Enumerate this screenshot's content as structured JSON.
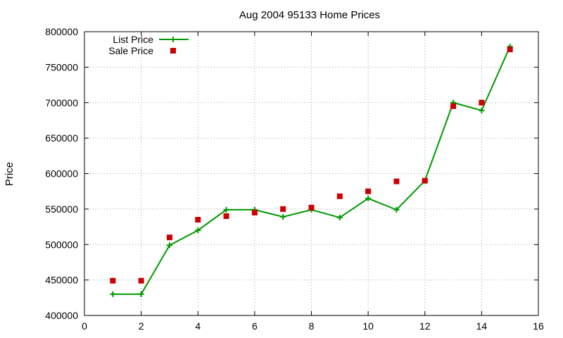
{
  "chart_data": {
    "type": "line",
    "title": "Aug 2004 95133 Home Prices",
    "ylabel": "Price",
    "xlim": [
      0,
      16
    ],
    "ylim": [
      400000,
      800000
    ],
    "x_ticks": [
      0,
      2,
      4,
      6,
      8,
      10,
      12,
      14,
      16
    ],
    "y_ticks": [
      400000,
      450000,
      500000,
      550000,
      600000,
      650000,
      700000,
      750000,
      800000
    ],
    "grid": true,
    "legend_position": "top-left",
    "series": [
      {
        "name": "List Price",
        "style": "line-points",
        "color": "#009900",
        "x": [
          1,
          2,
          3,
          4,
          5,
          6,
          7,
          8,
          9,
          10,
          11,
          12,
          13,
          14,
          15
        ],
        "y": [
          430000,
          430000,
          499000,
          520000,
          549000,
          549000,
          539000,
          549000,
          538000,
          565000,
          549000,
          590000,
          700000,
          689000,
          779000
        ]
      },
      {
        "name": "Sale Price",
        "style": "points",
        "color": "#cc0000",
        "x": [
          1,
          2,
          3,
          4,
          5,
          6,
          7,
          8,
          9,
          10,
          11,
          12,
          13,
          14,
          15
        ],
        "y": [
          449000,
          449000,
          510000,
          535000,
          540000,
          545000,
          550000,
          552000,
          568000,
          575000,
          589000,
          590000,
          695000,
          700000,
          775000
        ]
      }
    ]
  }
}
